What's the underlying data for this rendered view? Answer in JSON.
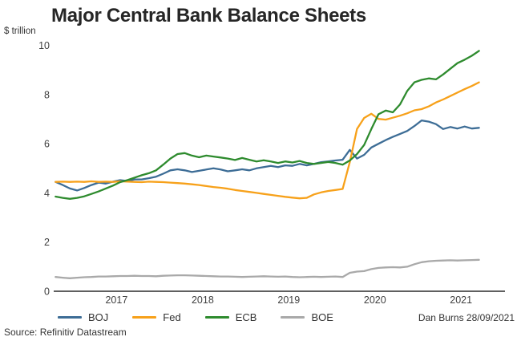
{
  "header": {
    "title": "Major Central Bank Balance Sheets"
  },
  "footer": {
    "byline": "Dan Burns 28/09/2021",
    "source": "Source: Refinitiv Datastream"
  },
  "chart_data": {
    "type": "line",
    "title": "Major Central Bank Balance Sheets",
    "units_label": "$ trillion",
    "xlabel": "",
    "ylabel": "$ trillion",
    "grid": false,
    "legend_position": "bottom",
    "xlim": [
      2016.77,
      2022.01
    ],
    "ylim": [
      0,
      10.02
    ],
    "y_ticks": [
      0,
      2,
      4,
      6,
      8,
      10
    ],
    "x_tick_labels": [
      "2017",
      "2018",
      "2019",
      "2020",
      "2021"
    ],
    "x_tick_positions": [
      2017.5,
      2018.5,
      2019.5,
      2020.5,
      2021.5
    ],
    "x_start": 2016.7917,
    "x_step": 0.0833333,
    "frequency": "monthly, Oct 2016 - Sep 2021, values in USD trillion",
    "axis_color": "#000000",
    "text_color": "#404040",
    "series": [
      {
        "name": "BOJ",
        "color": "#3d6d96",
        "values": [
          4.45,
          4.32,
          4.18,
          4.1,
          4.2,
          4.32,
          4.42,
          4.38,
          4.46,
          4.52,
          4.48,
          4.55,
          4.55,
          4.6,
          4.66,
          4.78,
          4.92,
          4.96,
          4.92,
          4.85,
          4.9,
          4.95,
          5.0,
          4.95,
          4.88,
          4.92,
          4.96,
          4.92,
          5.0,
          5.05,
          5.1,
          5.05,
          5.12,
          5.1,
          5.18,
          5.12,
          5.18,
          5.25,
          5.28,
          5.32,
          5.35,
          5.75,
          5.4,
          5.55,
          5.85,
          6.0,
          6.15,
          6.28,
          6.4,
          6.52,
          6.72,
          6.95,
          6.9,
          6.8,
          6.6,
          6.68,
          6.62,
          6.7,
          6.62,
          6.65
        ]
      },
      {
        "name": "Fed",
        "color": "#f7a11a",
        "values": [
          4.45,
          4.46,
          4.45,
          4.46,
          4.45,
          4.47,
          4.45,
          4.46,
          4.45,
          4.47,
          4.46,
          4.45,
          4.44,
          4.46,
          4.45,
          4.44,
          4.42,
          4.4,
          4.38,
          4.35,
          4.32,
          4.28,
          4.24,
          4.21,
          4.17,
          4.12,
          4.08,
          4.04,
          4.0,
          3.96,
          3.92,
          3.88,
          3.84,
          3.81,
          3.78,
          3.8,
          3.94,
          4.02,
          4.08,
          4.12,
          4.16,
          5.25,
          6.6,
          7.05,
          7.22,
          7.01,
          6.98,
          7.06,
          7.14,
          7.24,
          7.36,
          7.41,
          7.52,
          7.68,
          7.8,
          7.94,
          8.08,
          8.22,
          8.35,
          8.5
        ]
      },
      {
        "name": "ECB",
        "color": "#2e8b2e",
        "values": [
          3.85,
          3.8,
          3.76,
          3.8,
          3.86,
          3.96,
          4.06,
          4.18,
          4.3,
          4.44,
          4.52,
          4.62,
          4.72,
          4.8,
          4.92,
          5.15,
          5.4,
          5.58,
          5.62,
          5.52,
          5.45,
          5.52,
          5.48,
          5.44,
          5.4,
          5.34,
          5.42,
          5.35,
          5.28,
          5.33,
          5.28,
          5.22,
          5.28,
          5.24,
          5.3,
          5.22,
          5.18,
          5.22,
          5.26,
          5.22,
          5.15,
          5.32,
          5.58,
          5.95,
          6.6,
          7.2,
          7.35,
          7.28,
          7.6,
          8.15,
          8.5,
          8.6,
          8.66,
          8.62,
          8.82,
          9.05,
          9.28,
          9.42,
          9.58,
          9.78
        ]
      },
      {
        "name": "BOE",
        "color": "#a9a9a9",
        "values": [
          0.58,
          0.55,
          0.53,
          0.55,
          0.57,
          0.58,
          0.6,
          0.6,
          0.61,
          0.62,
          0.62,
          0.63,
          0.62,
          0.62,
          0.61,
          0.63,
          0.64,
          0.65,
          0.65,
          0.64,
          0.63,
          0.62,
          0.61,
          0.6,
          0.6,
          0.59,
          0.58,
          0.59,
          0.6,
          0.61,
          0.6,
          0.59,
          0.6,
          0.58,
          0.57,
          0.58,
          0.59,
          0.58,
          0.59,
          0.6,
          0.58,
          0.75,
          0.8,
          0.82,
          0.9,
          0.95,
          0.97,
          0.98,
          0.97,
          1.0,
          1.1,
          1.18,
          1.22,
          1.24,
          1.25,
          1.26,
          1.25,
          1.26,
          1.27,
          1.28
        ]
      }
    ]
  }
}
